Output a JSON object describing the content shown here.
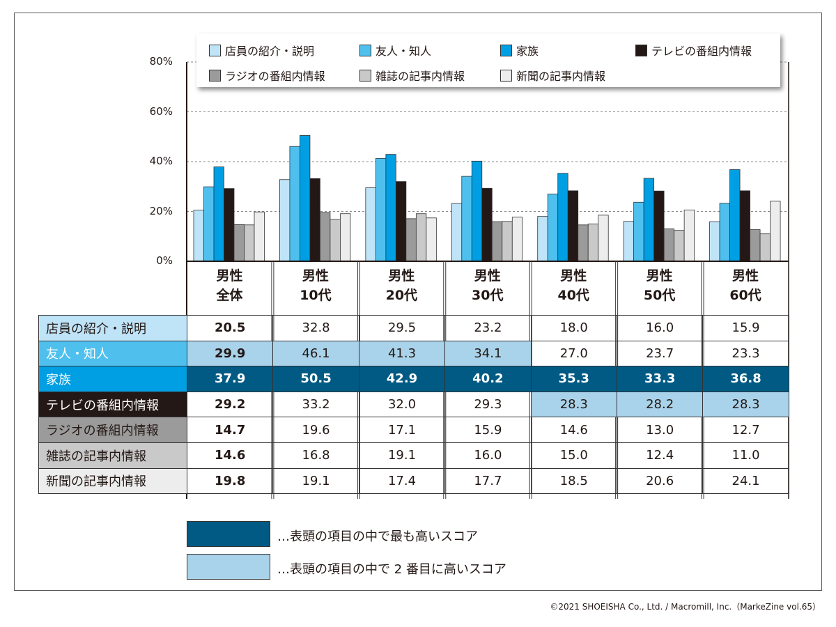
{
  "chart_data": {
    "type": "bar",
    "categories": [
      [
        "男性",
        "全体"
      ],
      [
        "男性",
        "10代"
      ],
      [
        "男性",
        "20代"
      ],
      [
        "男性",
        "30代"
      ],
      [
        "男性",
        "40代"
      ],
      [
        "男性",
        "50代"
      ],
      [
        "男性",
        "60代"
      ]
    ],
    "series": [
      {
        "name": "店員の紹介・説明",
        "color": "#bfe3f7",
        "label_bg": "#bfe3f7",
        "label_fg": "#231815",
        "values": [
          20.5,
          32.8,
          29.5,
          23.2,
          18.0,
          16.0,
          15.9
        ]
      },
      {
        "name": "友人・知人",
        "color": "#4fc0ee",
        "label_bg": "#4fc0ee",
        "label_fg": "#ffffff",
        "values": [
          29.9,
          46.1,
          41.3,
          34.1,
          27.0,
          23.7,
          23.3
        ]
      },
      {
        "name": "家族",
        "color": "#009fe3",
        "label_bg": "#009fe3",
        "label_fg": "#ffffff",
        "values": [
          37.9,
          50.5,
          42.9,
          40.2,
          35.3,
          33.3,
          36.8
        ]
      },
      {
        "name": "テレビの番組内情報",
        "color": "#231815",
        "label_bg": "#231815",
        "label_fg": "#ffffff",
        "values": [
          29.2,
          33.2,
          32.0,
          29.3,
          28.3,
          28.2,
          28.3
        ]
      },
      {
        "name": "ラジオの番組内情報",
        "color": "#9b9b9b",
        "label_bg": "#9b9b9b",
        "label_fg": "#231815",
        "values": [
          14.7,
          19.6,
          17.1,
          15.9,
          14.6,
          13.0,
          12.7
        ]
      },
      {
        "name": "雑誌の記事内情報",
        "color": "#c9c9c9",
        "label_bg": "#c9c9c9",
        "label_fg": "#231815",
        "values": [
          14.6,
          16.8,
          19.1,
          16.0,
          15.0,
          12.4,
          11.0
        ]
      },
      {
        "name": "新聞の記事内情報",
        "color": "#ededed",
        "label_bg": "#ededed",
        "label_fg": "#231815",
        "values": [
          19.8,
          19.1,
          17.4,
          17.7,
          18.5,
          20.6,
          24.1
        ]
      }
    ],
    "highest": [
      [
        2,
        0
      ],
      [
        2,
        1
      ],
      [
        2,
        2
      ],
      [
        2,
        3
      ],
      [
        2,
        4
      ],
      [
        2,
        5
      ],
      [
        2,
        6
      ]
    ],
    "second": [
      [
        1,
        0
      ],
      [
        1,
        1
      ],
      [
        1,
        2
      ],
      [
        1,
        3
      ],
      [
        3,
        4
      ],
      [
        3,
        5
      ],
      [
        3,
        6
      ]
    ],
    "ylim": [
      0,
      80
    ],
    "yticks": [
      "0%",
      "20%",
      "40%",
      "60%",
      "80%"
    ],
    "grid": true,
    "legend": "top"
  },
  "colors": {
    "highest": "#005a84",
    "second": "#a9d3ea"
  },
  "key": {
    "highest": "…表頭の項目の中で最も高いスコア",
    "second": "…表頭の項目の中で 2 番目に高いスコア"
  },
  "copyright": "©2021 SHOEISHA Co., Ltd. / Macromill, Inc.（MarkeZine vol.65）"
}
